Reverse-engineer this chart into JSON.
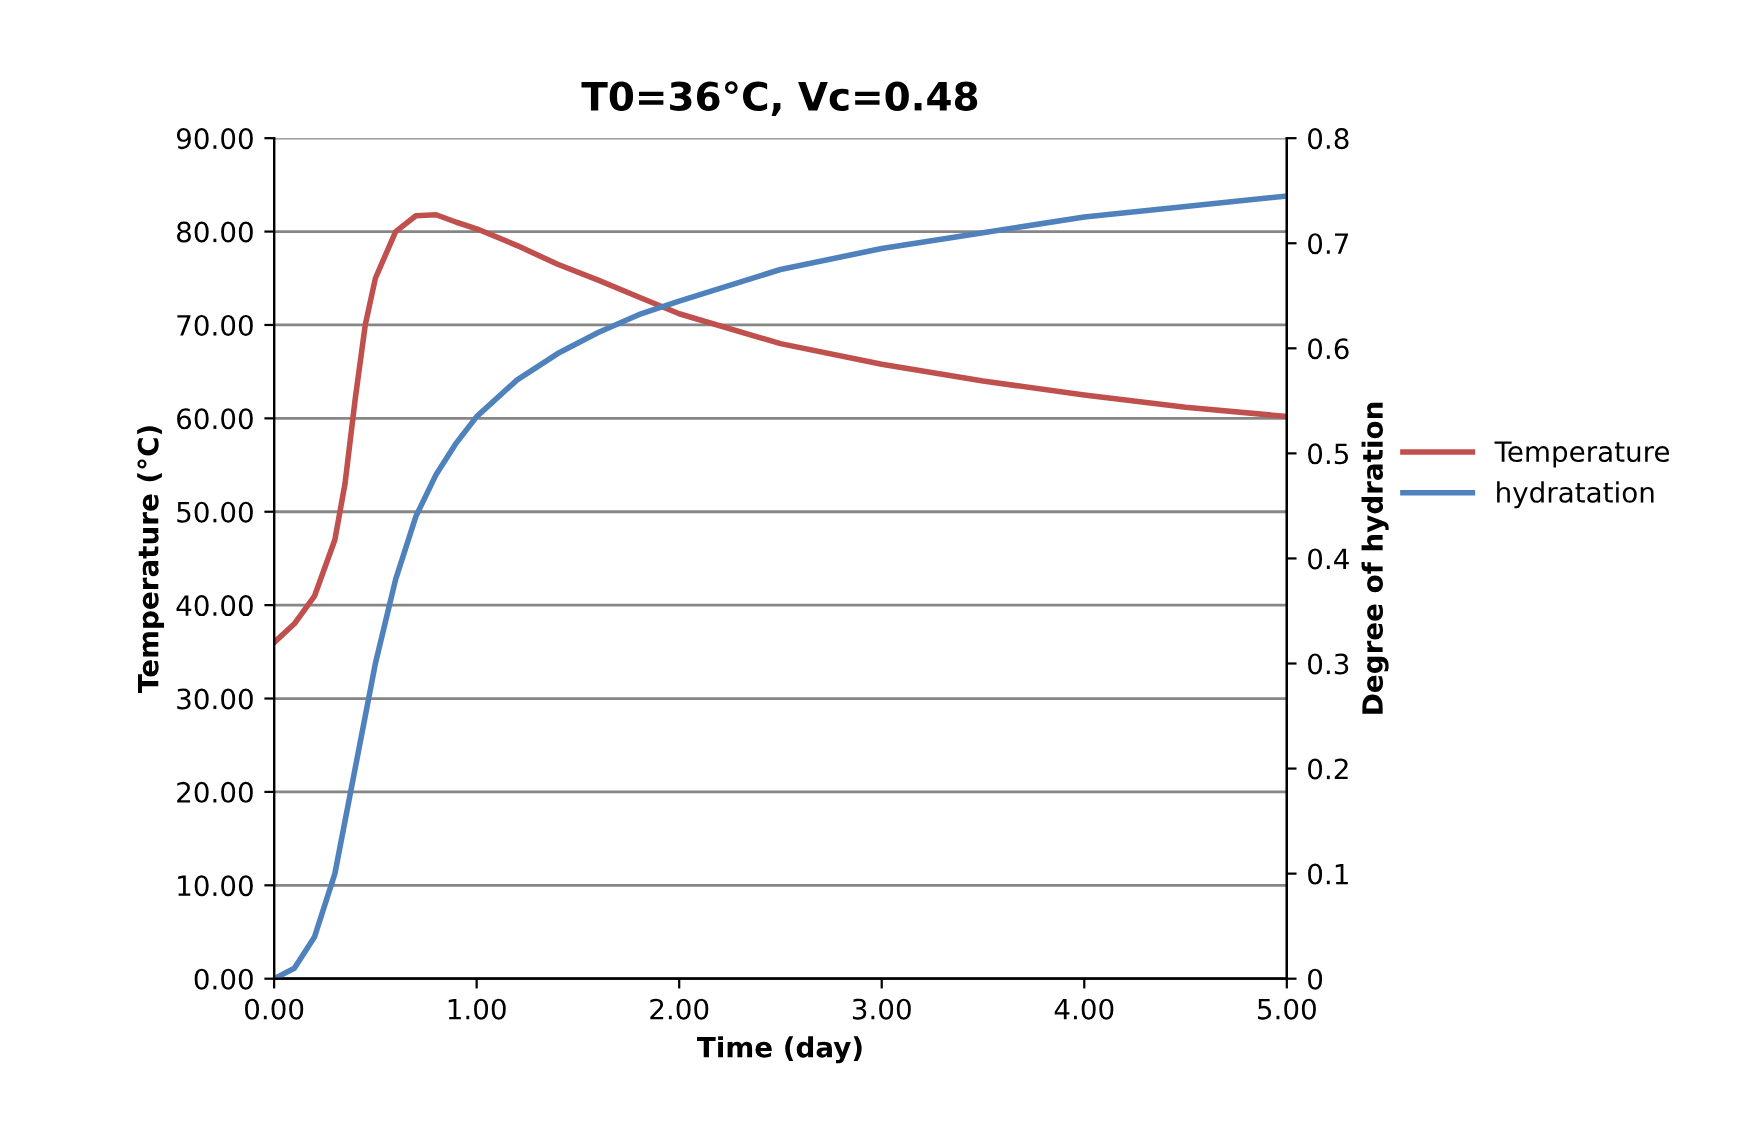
{
  "chart_data": {
    "type": "line",
    "title": "T0=36°C, Vc=0.48",
    "xlabel": "Time (day)",
    "ylabel": "Temperature (°C)",
    "y2label": "Degree of hydration",
    "xlim": [
      0,
      5
    ],
    "xticks": [
      {
        "value": 0,
        "label": "0.00"
      },
      {
        "value": 1,
        "label": "1.00"
      },
      {
        "value": 2,
        "label": "2.00"
      },
      {
        "value": 3,
        "label": "3.00"
      },
      {
        "value": 4,
        "label": "4.00"
      },
      {
        "value": 5,
        "label": "5.00"
      }
    ],
    "ylim": [
      0,
      90
    ],
    "yticks": [
      {
        "value": 0,
        "label": "0.00"
      },
      {
        "value": 10,
        "label": "10.00"
      },
      {
        "value": 20,
        "label": "20.00"
      },
      {
        "value": 30,
        "label": "30.00"
      },
      {
        "value": 40,
        "label": "40.00"
      },
      {
        "value": 50,
        "label": "50.00"
      },
      {
        "value": 60,
        "label": "60.00"
      },
      {
        "value": 70,
        "label": "70.00"
      },
      {
        "value": 80,
        "label": "80.00"
      },
      {
        "value": 90,
        "label": "90.00"
      }
    ],
    "y2lim": [
      0,
      0.8
    ],
    "y2ticks": [
      0,
      0.1,
      0.2,
      0.3,
      0.4,
      0.5,
      0.6,
      0.7,
      0.8
    ],
    "grid": "y",
    "legend": "right",
    "line_style": "solid",
    "marker": "none",
    "series": [
      {
        "name": "Temperature",
        "color": "#c0504d",
        "x": [
          0,
          0.1,
          0.2,
          0.3,
          0.35,
          0.4,
          0.45,
          0.5,
          0.6,
          0.7,
          0.8,
          0.9,
          1.0,
          1.2,
          1.4,
          1.6,
          1.8,
          2.0,
          2.5,
          3.0,
          3.5,
          4.0,
          4.5,
          5.0
        ],
        "values": [
          36,
          38,
          41,
          47,
          53,
          62,
          70,
          75,
          80,
          81.7,
          81.8,
          81,
          80.3,
          78.5,
          76.5,
          74.8,
          73,
          71.2,
          68,
          65.8,
          64,
          62.5,
          61.2,
          60.2
        ]
      },
      {
        "name": "hydratation",
        "color": "#4f81bd",
        "axis": "y2",
        "x": [
          0,
          0.1,
          0.2,
          0.3,
          0.4,
          0.5,
          0.6,
          0.7,
          0.8,
          0.9,
          1.0,
          1.2,
          1.4,
          1.6,
          1.8,
          2.0,
          2.5,
          3.0,
          3.5,
          4.0,
          4.5,
          5.0
        ],
        "values": [
          0.0,
          0.01,
          0.04,
          0.1,
          0.2,
          0.3,
          0.38,
          0.44,
          0.48,
          0.51,
          0.535,
          0.57,
          0.595,
          0.615,
          0.632,
          0.645,
          0.675,
          0.695,
          0.71,
          0.725,
          0.735,
          0.745
        ]
      }
    ]
  }
}
